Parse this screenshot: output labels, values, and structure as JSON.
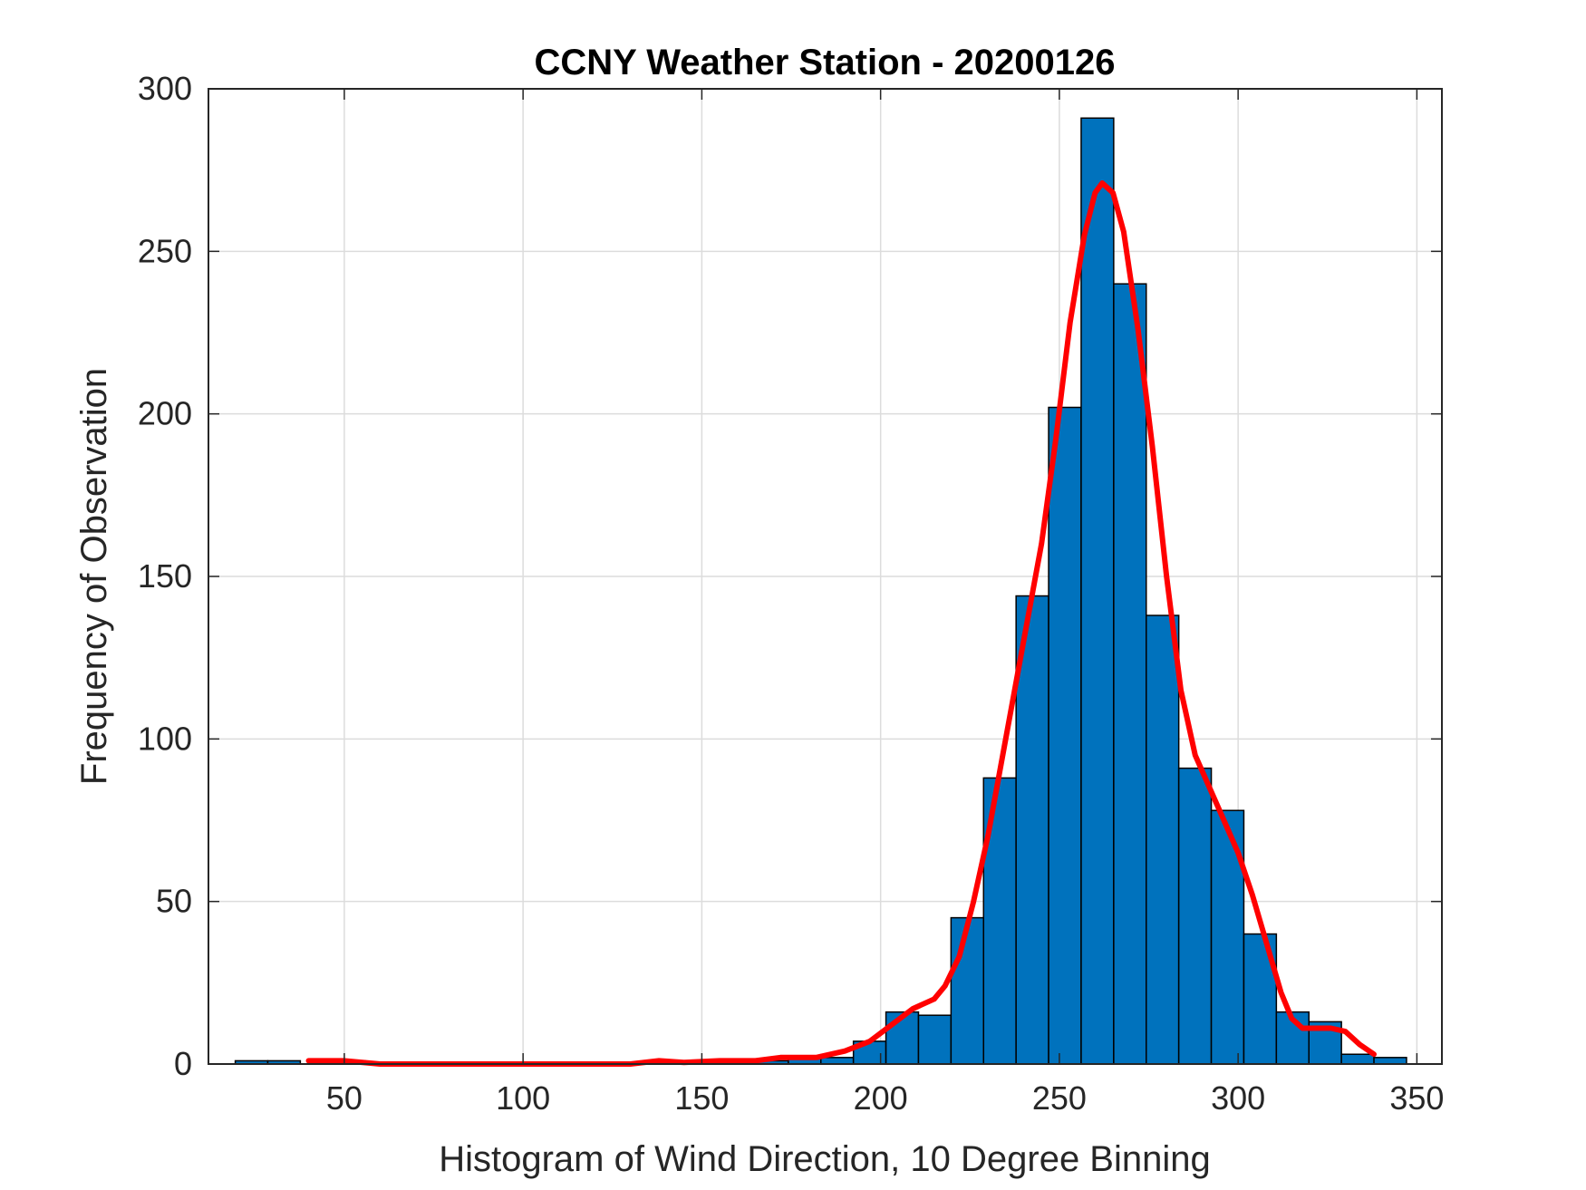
{
  "chart_data": {
    "type": "bar",
    "title": "CCNY Weather Station - 20200126",
    "xlabel": "Histogram of Wind Direction, 10 Degree Binning",
    "ylabel": "Frequency of Observation",
    "xlim": [
      12,
      357
    ],
    "ylim": [
      0,
      300
    ],
    "xticks": [
      50,
      100,
      150,
      200,
      250,
      300,
      350
    ],
    "yticks": [
      0,
      50,
      100,
      150,
      200,
      250,
      300
    ],
    "grid": true,
    "bin_width": 9.1,
    "bar_color": "#0072BD",
    "bars": [
      {
        "left": 19.5,
        "value": 1
      },
      {
        "left": 28.6,
        "value": 1
      },
      {
        "left": 37.7,
        "value": 0
      },
      {
        "left": 46.8,
        "value": 1
      },
      {
        "left": 55.9,
        "value": 0
      },
      {
        "left": 65.0,
        "value": 0
      },
      {
        "left": 74.1,
        "value": 0
      },
      {
        "left": 83.2,
        "value": 0
      },
      {
        "left": 92.3,
        "value": 0
      },
      {
        "left": 101.4,
        "value": 0
      },
      {
        "left": 110.5,
        "value": 0
      },
      {
        "left": 119.6,
        "value": 0
      },
      {
        "left": 128.7,
        "value": 0
      },
      {
        "left": 137.8,
        "value": 1
      },
      {
        "left": 146.9,
        "value": 0
      },
      {
        "left": 156.0,
        "value": 1
      },
      {
        "left": 165.1,
        "value": 1
      },
      {
        "left": 174.2,
        "value": 2
      },
      {
        "left": 183.3,
        "value": 2
      },
      {
        "left": 192.4,
        "value": 7
      },
      {
        "left": 201.5,
        "value": 16
      },
      {
        "left": 210.6,
        "value": 15
      },
      {
        "left": 219.7,
        "value": 45
      },
      {
        "left": 228.8,
        "value": 88
      },
      {
        "left": 237.9,
        "value": 144
      },
      {
        "left": 247.0,
        "value": 202
      },
      {
        "left": 256.1,
        "value": 291
      },
      {
        "left": 265.2,
        "value": 240
      },
      {
        "left": 274.3,
        "value": 138
      },
      {
        "left": 283.4,
        "value": 91
      },
      {
        "left": 292.5,
        "value": 78
      },
      {
        "left": 301.6,
        "value": 40
      },
      {
        "left": 310.7,
        "value": 16
      },
      {
        "left": 319.8,
        "value": 13
      },
      {
        "left": 328.9,
        "value": 3
      },
      {
        "left": 338.0,
        "value": 2
      }
    ],
    "fit_line": {
      "color": "#FF0000",
      "points": [
        [
          40,
          1
        ],
        [
          50,
          1
        ],
        [
          60,
          0
        ],
        [
          80,
          0
        ],
        [
          100,
          0
        ],
        [
          120,
          0
        ],
        [
          130,
          0
        ],
        [
          138,
          1
        ],
        [
          145,
          0.5
        ],
        [
          155,
          1
        ],
        [
          165,
          1
        ],
        [
          172,
          2
        ],
        [
          182,
          2
        ],
        [
          190,
          4
        ],
        [
          197,
          7
        ],
        [
          203,
          12
        ],
        [
          209,
          17
        ],
        [
          215,
          20
        ],
        [
          218,
          24
        ],
        [
          222,
          33
        ],
        [
          226,
          50
        ],
        [
          230,
          70
        ],
        [
          235,
          100
        ],
        [
          240,
          130
        ],
        [
          245,
          160
        ],
        [
          249,
          192
        ],
        [
          253,
          228
        ],
        [
          257,
          255
        ],
        [
          260,
          268
        ],
        [
          262,
          271
        ],
        [
          265,
          268
        ],
        [
          268,
          256
        ],
        [
          272,
          226
        ],
        [
          276,
          190
        ],
        [
          280,
          150
        ],
        [
          284,
          115
        ],
        [
          288,
          95
        ],
        [
          292,
          85
        ],
        [
          296,
          75
        ],
        [
          300,
          65
        ],
        [
          304,
          52
        ],
        [
          308,
          37
        ],
        [
          312,
          22
        ],
        [
          315,
          14
        ],
        [
          318,
          11
        ],
        [
          321,
          11
        ],
        [
          326,
          11
        ],
        [
          330,
          10
        ],
        [
          334,
          6
        ],
        [
          338,
          3
        ]
      ]
    }
  }
}
